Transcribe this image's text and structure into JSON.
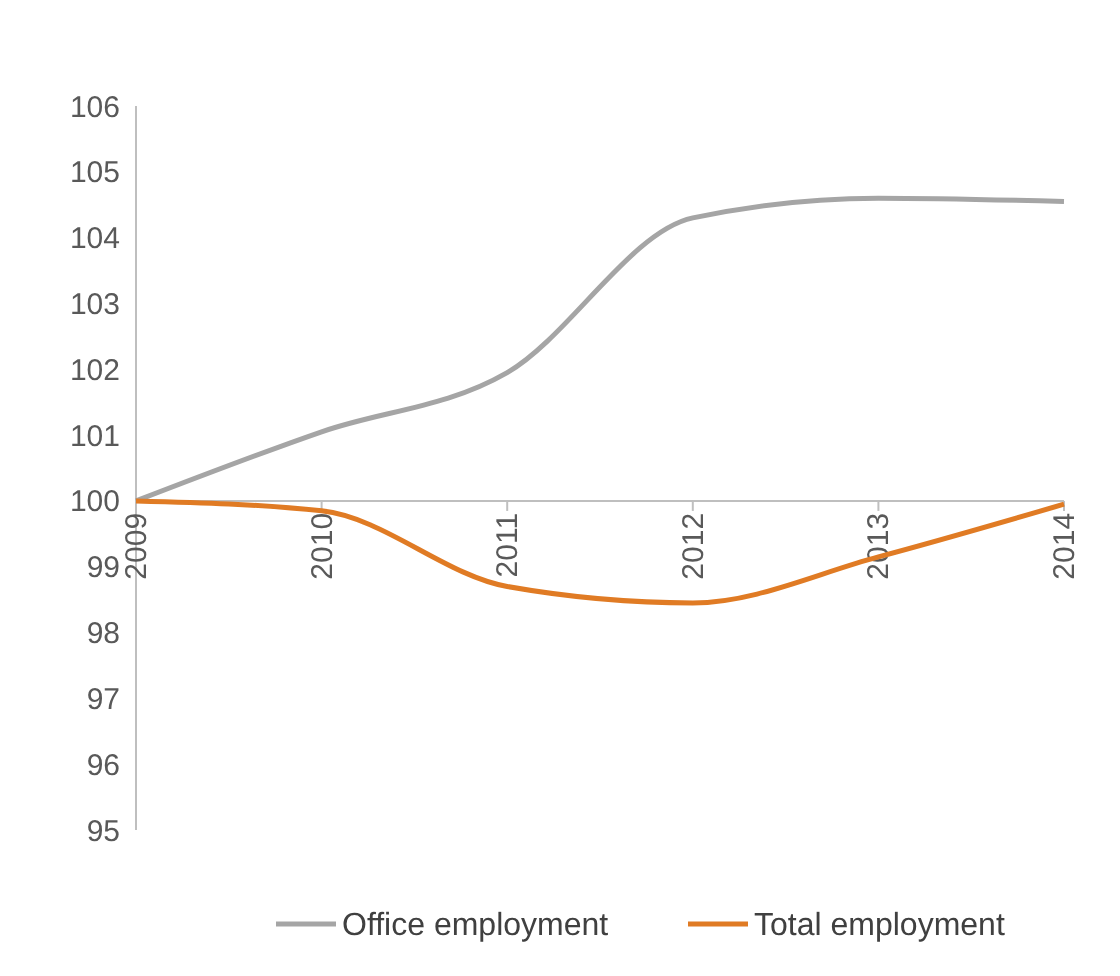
{
  "chart_data": {
    "type": "line",
    "categories": [
      "2009",
      "2010",
      "2011",
      "2012",
      "2013",
      "2014"
    ],
    "series": [
      {
        "name": "Office employment",
        "color": "#a5a5a5",
        "values": [
          100,
          101.05,
          101.95,
          104.3,
          104.6,
          104.55
        ]
      },
      {
        "name": "Total employment",
        "color": "#e07b24",
        "values": [
          100,
          99.85,
          98.7,
          98.45,
          99.15,
          99.95
        ]
      }
    ],
    "ylim": [
      95,
      106
    ],
    "yticks": [
      95,
      96,
      97,
      98,
      99,
      100,
      101,
      102,
      103,
      104,
      105,
      106
    ],
    "grid": false,
    "legend": "bottom",
    "marker": "none",
    "line_style": "solid"
  }
}
